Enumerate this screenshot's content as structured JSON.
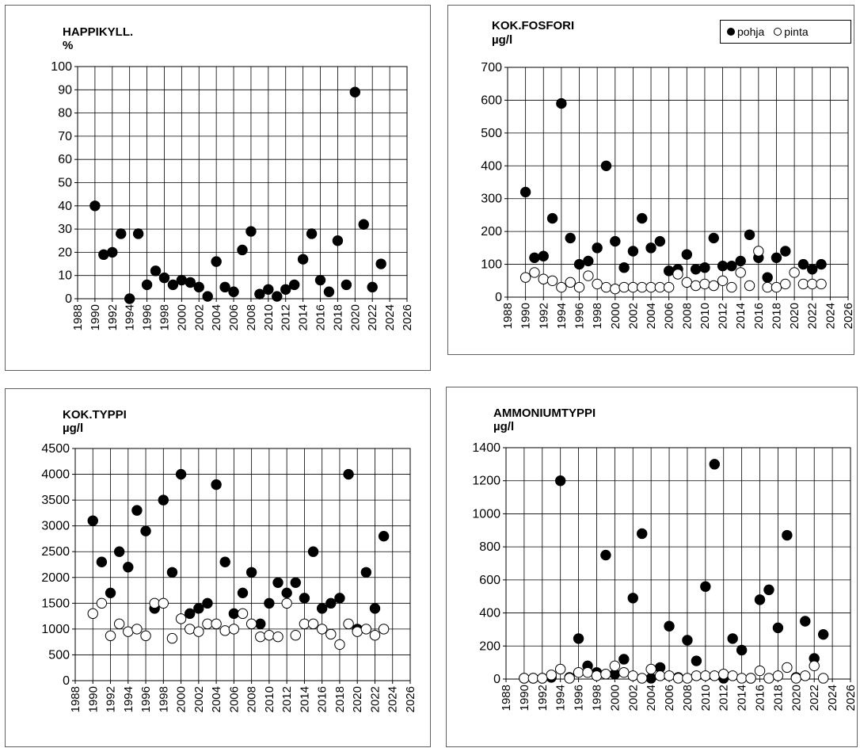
{
  "chart_data": [
    {
      "type": "scatter",
      "title": "HAPPIKYLL.",
      "unit": "%",
      "xlim": [
        1988,
        2026
      ],
      "ylim": [
        0,
        100
      ],
      "xticks": [
        "1988",
        "1990",
        "1992",
        "1994",
        "1996",
        "1998",
        "2000",
        "2002",
        "2004",
        "2006",
        "2008",
        "2010",
        "2012",
        "2014",
        "2016",
        "2018",
        "2020",
        "2022",
        "2024",
        "2026"
      ],
      "yticks": [
        "0",
        "10",
        "20",
        "30",
        "40",
        "50",
        "60",
        "70",
        "80",
        "90",
        "100"
      ],
      "grid": true,
      "series": [
        {
          "key": "pohja",
          "marker": "filled",
          "x": [
            1990,
            1991,
            1992,
            1993,
            1994,
            1995,
            1996,
            1997,
            1998,
            1999,
            2000,
            2001,
            2002,
            2003,
            2004,
            2005,
            2006,
            2007,
            2008,
            2009,
            2010,
            2011,
            2012,
            2013,
            2014,
            2015,
            2016,
            2017,
            2018,
            2019,
            2020,
            2021,
            2022,
            2023
          ],
          "y": [
            40,
            19,
            20,
            28,
            0,
            28,
            6,
            12,
            9,
            6,
            8,
            7,
            5,
            1,
            16,
            5,
            3,
            21,
            29,
            2,
            4,
            1,
            4,
            6,
            17,
            28,
            8,
            3,
            25,
            6,
            89,
            32,
            5,
            15
          ]
        }
      ]
    },
    {
      "type": "scatter",
      "title": "KOK.FOSFORI",
      "unit": "µg/l",
      "xlim": [
        1988,
        2026
      ],
      "ylim": [
        0,
        700
      ],
      "xticks": [
        "1988",
        "1990",
        "1992",
        "1994",
        "1996",
        "1998",
        "2000",
        "2002",
        "2004",
        "2006",
        "2008",
        "2010",
        "2012",
        "2014",
        "2016",
        "2018",
        "2020",
        "2022",
        "2024",
        "2026"
      ],
      "yticks": [
        "0",
        "100",
        "200",
        "300",
        "400",
        "500",
        "600",
        "700"
      ],
      "grid": true,
      "legend": {
        "position": "top-right",
        "entries": [
          "pohja",
          "pinta"
        ]
      },
      "series": [
        {
          "name": "pohja",
          "marker": "filled",
          "x": [
            1990,
            1991,
            1992,
            1993,
            1994,
            1995,
            1996,
            1997,
            1998,
            1999,
            2000,
            2001,
            2002,
            2003,
            2004,
            2005,
            2006,
            2007,
            2008,
            2009,
            2010,
            2011,
            2012,
            2013,
            2014,
            2015,
            2016,
            2017,
            2018,
            2019,
            2021,
            2022,
            2023
          ],
          "y": [
            320,
            120,
            125,
            240,
            590,
            180,
            100,
            110,
            150,
            400,
            170,
            90,
            140,
            240,
            150,
            170,
            80,
            85,
            130,
            85,
            90,
            180,
            95,
            95,
            110,
            190,
            120,
            60,
            120,
            140,
            100,
            85,
            100
          ]
        },
        {
          "name": "pinta",
          "marker": "hollow",
          "x": [
            1990,
            1991,
            1992,
            1993,
            1994,
            1995,
            1996,
            1997,
            1998,
            1999,
            2000,
            2001,
            2002,
            2003,
            2004,
            2005,
            2006,
            2007,
            2008,
            2009,
            2010,
            2011,
            2012,
            2013,
            2014,
            2015,
            2016,
            2017,
            2018,
            2019,
            2020,
            2021,
            2022,
            2023
          ],
          "y": [
            60,
            75,
            55,
            50,
            30,
            45,
            30,
            65,
            40,
            30,
            25,
            30,
            30,
            30,
            30,
            30,
            30,
            70,
            45,
            35,
            40,
            35,
            50,
            30,
            75,
            35,
            140,
            30,
            30,
            40,
            75,
            40,
            40,
            40
          ]
        }
      ]
    },
    {
      "type": "scatter",
      "title": "KOK.TYPPI",
      "unit": "µg/l",
      "xlim": [
        1988,
        2026
      ],
      "ylim": [
        0,
        4500
      ],
      "xticks": [
        "1988",
        "1990",
        "1992",
        "1994",
        "1996",
        "1998",
        "2000",
        "2002",
        "2004",
        "2006",
        "2008",
        "2010",
        "2012",
        "2014",
        "2016",
        "2018",
        "2020",
        "2022",
        "2024",
        "2026"
      ],
      "yticks": [
        "0",
        "500",
        "1000",
        "1500",
        "2000",
        "2500",
        "3000",
        "3500",
        "4000",
        "4500"
      ],
      "grid": true,
      "series": [
        {
          "key": "pohja",
          "marker": "filled",
          "x": [
            1990,
            1991,
            1992,
            1993,
            1994,
            1995,
            1996,
            1997,
            1998,
            1999,
            2000,
            2001,
            2002,
            2003,
            2004,
            2005,
            2006,
            2007,
            2008,
            2009,
            2010,
            2011,
            2012,
            2013,
            2014,
            2015,
            2016,
            2017,
            2018,
            2019,
            2020,
            2021,
            2022,
            2023
          ],
          "y": [
            3100,
            2300,
            1700,
            2500,
            2200,
            3300,
            2900,
            1400,
            3500,
            2100,
            4000,
            1300,
            1400,
            1500,
            3800,
            2300,
            1300,
            1700,
            2100,
            1100,
            1500,
            1900,
            1700,
            1900,
            1600,
            2500,
            1400,
            1500,
            1600,
            4000,
            1000,
            2100,
            1400,
            2800
          ]
        },
        {
          "key": "pinta",
          "marker": "hollow",
          "x": [
            1990,
            1991,
            1992,
            1993,
            1994,
            1995,
            1996,
            1997,
            1998,
            1999,
            2000,
            2001,
            2002,
            2003,
            2004,
            2005,
            2006,
            2007,
            2008,
            2009,
            2010,
            2011,
            2012,
            2013,
            2014,
            2015,
            2016,
            2017,
            2018,
            2019,
            2020,
            2021,
            2022,
            2023
          ],
          "y": [
            1300,
            1500,
            870,
            1100,
            950,
            1000,
            870,
            1500,
            1500,
            820,
            1200,
            1000,
            950,
            1100,
            1100,
            970,
            1000,
            1300,
            1100,
            850,
            880,
            850,
            1500,
            880,
            1100,
            1100,
            1000,
            900,
            700,
            1100,
            950,
            1000,
            880,
            1000
          ]
        }
      ]
    },
    {
      "type": "scatter",
      "title": "AMMONIUMTYPPI",
      "unit": "µg/l",
      "xlim": [
        1988,
        2026
      ],
      "ylim": [
        0,
        1400
      ],
      "xticks": [
        "1988",
        "1990",
        "1992",
        "1994",
        "1996",
        "1998",
        "2000",
        "2002",
        "2004",
        "2006",
        "2008",
        "2010",
        "2012",
        "2014",
        "2016",
        "2018",
        "2020",
        "2022",
        "2024",
        "2026"
      ],
      "yticks": [
        "0",
        "200",
        "400",
        "600",
        "800",
        "1000",
        "1200",
        "1400"
      ],
      "grid": true,
      "series": [
        {
          "key": "pohja",
          "marker": "filled",
          "x": [
            1990,
            1991,
            1992,
            1993,
            1994,
            1995,
            1996,
            1997,
            1998,
            1999,
            2000,
            2001,
            2002,
            2003,
            2004,
            2005,
            2006,
            2007,
            2008,
            2009,
            2010,
            2011,
            2012,
            2013,
            2014,
            2015,
            2016,
            2017,
            2018,
            2019,
            2020,
            2021,
            2022,
            2023
          ],
          "y": [
            5,
            5,
            5,
            10,
            1200,
            10,
            245,
            80,
            40,
            750,
            30,
            120,
            490,
            880,
            5,
            70,
            320,
            10,
            235,
            110,
            560,
            1300,
            5,
            245,
            175,
            5,
            480,
            540,
            310,
            870,
            10,
            350,
            125,
            270
          ]
        },
        {
          "key": "pinta",
          "marker": "hollow",
          "x": [
            1990,
            1991,
            1992,
            1993,
            1994,
            1995,
            1996,
            1997,
            1998,
            1999,
            2000,
            2001,
            2002,
            2003,
            2004,
            2005,
            2006,
            2007,
            2008,
            2009,
            2010,
            2011,
            2012,
            2013,
            2014,
            2015,
            2016,
            2017,
            2018,
            2019,
            2020,
            2021,
            2022,
            2023
          ],
          "y": [
            5,
            5,
            5,
            25,
            60,
            5,
            40,
            40,
            20,
            30,
            80,
            40,
            20,
            5,
            60,
            20,
            20,
            5,
            5,
            20,
            20,
            20,
            30,
            20,
            5,
            5,
            50,
            5,
            20,
            70,
            5,
            20,
            80,
            5
          ]
        }
      ]
    }
  ]
}
